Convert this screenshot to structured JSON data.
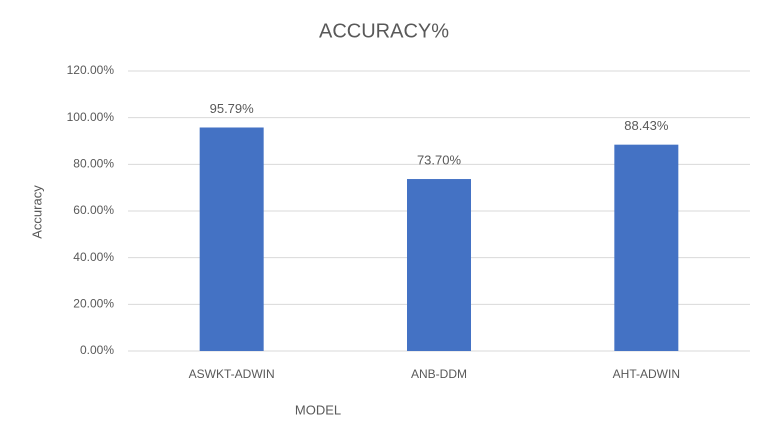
{
  "chart_data": {
    "type": "bar",
    "title": "ACCURACY%",
    "x_label": "MODEL",
    "y_label": "Accuracy",
    "categories": [
      "ASWKT-ADWIN",
      "ANB-DDM",
      "AHT-ADWIN"
    ],
    "values": [
      95.79,
      73.7,
      88.43
    ],
    "value_labels": [
      "95.79%",
      "73.70%",
      "88.43%"
    ],
    "color": "#4472c4",
    "ylim": [
      0,
      120
    ],
    "yticks": [
      {
        "value": 0,
        "label": "0.00%"
      },
      {
        "value": 20,
        "label": "20.00%"
      },
      {
        "value": 40,
        "label": "40.00%"
      },
      {
        "value": 60,
        "label": "60.00%"
      },
      {
        "value": 80,
        "label": "80.00%"
      },
      {
        "value": 100,
        "label": "100.00%"
      },
      {
        "value": 120,
        "label": "120.00%"
      }
    ],
    "grid": true
  }
}
